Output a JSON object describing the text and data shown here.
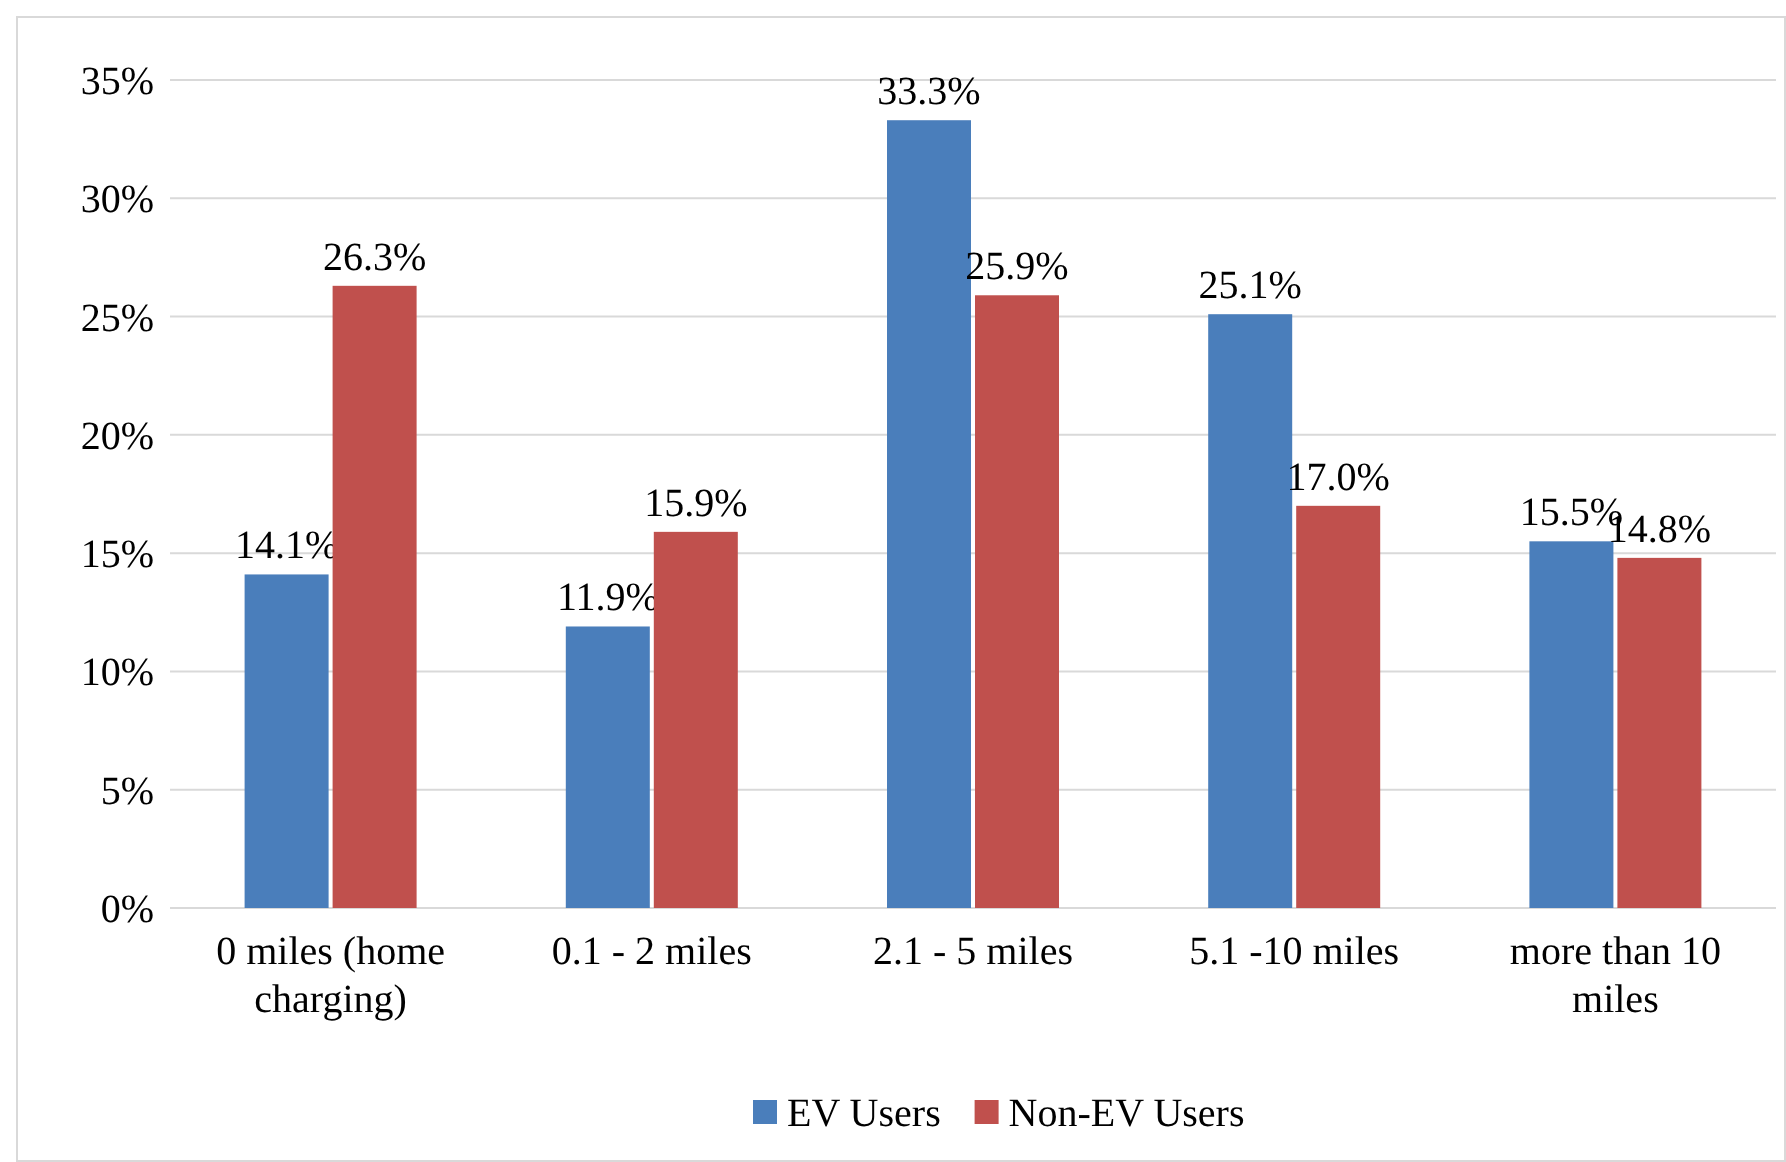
{
  "chart_data": {
    "type": "bar",
    "categories": [
      "0 miles (home charging)",
      "0.1 - 2 miles",
      "2.1 - 5 miles",
      "5.1 -10 miles",
      "more than 10 miles"
    ],
    "series": [
      {
        "name": "EV Users",
        "color": "#4a7ebb",
        "values": [
          14.1,
          11.9,
          33.3,
          25.1,
          15.5
        ],
        "value_labels": [
          "14.1%",
          "11.9%",
          "33.3%",
          "25.1%",
          "15.5%"
        ]
      },
      {
        "name": "Non-EV Users",
        "color": "#c0504d",
        "values": [
          26.3,
          15.9,
          25.9,
          17.0,
          14.8
        ],
        "value_labels": [
          "26.3%",
          "15.9%",
          "25.9%",
          "17.0%",
          "14.8%"
        ]
      }
    ],
    "ylim": [
      0,
      35
    ],
    "yticks": [
      {
        "value": 0,
        "label": "0%"
      },
      {
        "value": 5,
        "label": "5%"
      },
      {
        "value": 10,
        "label": "10%"
      },
      {
        "value": 15,
        "label": "15%"
      },
      {
        "value": 20,
        "label": "20%"
      },
      {
        "value": 25,
        "label": "25%"
      },
      {
        "value": 30,
        "label": "30%"
      },
      {
        "value": 35,
        "label": "35%"
      }
    ],
    "grid": "y",
    "legend": "bottom"
  }
}
